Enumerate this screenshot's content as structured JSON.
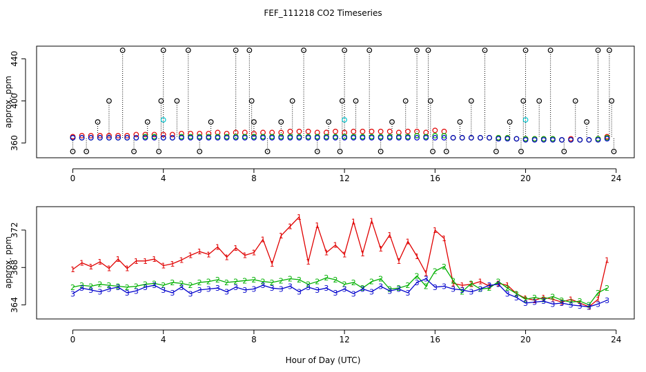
{
  "title": "FEF_111218  CO2 Timeseries",
  "x_axis_label": "Hour of Day (UTC)",
  "colors": {
    "series_1": "#e00000",
    "series_2": "#00b000",
    "series_3": "#0000cc",
    "series_black": "#000000",
    "series_cyan": "#00c8d2"
  },
  "chart_data": [
    {
      "type": "scatter",
      "title": "FEF_111218  CO2 Timeseries",
      "xlabel": "",
      "ylabel": "approx. ppm",
      "xlim": [
        -1.6,
        24.8
      ],
      "ylim": [
        346,
        452
      ],
      "xticks": [
        0,
        4,
        8,
        12,
        16,
        20,
        24
      ],
      "yticks": [
        360,
        400,
        440
      ],
      "marker": "o",
      "note": "black circles connected to near-baseline values by dotted vertical lines; many clipped at plot top",
      "series": [
        {
          "name": "red",
          "color": "#e00000",
          "x": [
            0.0,
            0.4,
            0.8,
            1.2,
            1.6,
            2.0,
            2.4,
            2.8,
            3.2,
            3.6,
            4.0,
            4.4,
            4.8,
            5.2,
            5.6,
            6.0,
            6.4,
            6.8,
            7.2,
            7.6,
            8.0,
            8.4,
            8.8,
            9.2,
            9.6,
            10.0,
            10.4,
            10.8,
            11.2,
            11.6,
            12.0,
            12.4,
            12.8,
            13.2,
            13.6,
            14.0,
            14.4,
            14.8,
            15.2,
            15.6,
            16.0,
            16.4,
            16.8,
            17.2,
            17.6,
            18.0,
            18.4,
            18.8,
            19.2,
            19.6,
            20.0,
            20.4,
            20.8,
            21.2,
            21.6,
            22.0,
            22.4,
            22.8,
            23.2,
            23.6
          ],
          "y": [
            366,
            367,
            367,
            367,
            367,
            367,
            367,
            368,
            368,
            368,
            368,
            368,
            369,
            369,
            369,
            369,
            370,
            369,
            370,
            370,
            369,
            370,
            370,
            370,
            371,
            371,
            371,
            370,
            370,
            371,
            370,
            371,
            371,
            371,
            371,
            371,
            370,
            371,
            371,
            370,
            372,
            371,
            365,
            365,
            365,
            365,
            365,
            365,
            365,
            364,
            364,
            364,
            364,
            364,
            363,
            364,
            363,
            363,
            364,
            366
          ]
        },
        {
          "name": "green",
          "color": "#00b000",
          "x": [
            0.0,
            0.4,
            0.8,
            1.2,
            1.6,
            2.0,
            2.4,
            2.8,
            3.2,
            3.6,
            4.0,
            4.4,
            4.8,
            5.2,
            5.6,
            6.0,
            6.4,
            6.8,
            7.2,
            7.6,
            8.0,
            8.4,
            8.8,
            9.2,
            9.6,
            10.0,
            10.4,
            10.8,
            11.2,
            11.6,
            12.0,
            12.4,
            12.8,
            13.2,
            13.6,
            14.0,
            14.4,
            14.8,
            15.2,
            15.6,
            16.0,
            16.4,
            16.8,
            17.2,
            17.6,
            18.0,
            18.4,
            18.8,
            19.2,
            19.6,
            20.0,
            20.4,
            20.8,
            21.2,
            21.6,
            22.0,
            22.4,
            22.8,
            23.2,
            23.6
          ],
          "y": [
            365,
            365,
            365,
            365,
            365,
            365,
            365,
            365,
            366,
            366,
            365,
            365,
            366,
            366,
            366,
            366,
            366,
            366,
            366,
            366,
            366,
            366,
            366,
            366,
            366,
            366,
            366,
            366,
            366,
            366,
            366,
            366,
            366,
            366,
            366,
            366,
            366,
            366,
            367,
            366,
            367,
            367,
            365,
            365,
            365,
            365,
            365,
            365,
            365,
            364,
            364,
            364,
            364,
            364,
            363,
            363,
            363,
            363,
            364,
            365
          ]
        },
        {
          "name": "blue",
          "color": "#0000cc",
          "x": [
            0.0,
            0.4,
            0.8,
            1.2,
            1.6,
            2.0,
            2.4,
            2.8,
            3.2,
            3.6,
            4.0,
            4.4,
            4.8,
            5.2,
            5.6,
            6.0,
            6.4,
            6.8,
            7.2,
            7.6,
            8.0,
            8.4,
            8.8,
            9.2,
            9.6,
            10.0,
            10.4,
            10.8,
            11.2,
            11.6,
            12.0,
            12.4,
            12.8,
            13.2,
            13.6,
            14.0,
            14.4,
            14.8,
            15.2,
            15.6,
            16.0,
            16.4,
            16.8,
            17.2,
            17.6,
            18.0,
            18.4,
            18.8,
            19.2,
            19.6,
            20.0,
            20.4,
            20.8,
            21.2,
            21.6,
            22.0,
            22.4,
            22.8,
            23.2,
            23.6
          ],
          "y": [
            365,
            365,
            365,
            365,
            365,
            365,
            365,
            365,
            365,
            365,
            365,
            365,
            365,
            365,
            365,
            365,
            365,
            365,
            365,
            365,
            365,
            365,
            365,
            365,
            365,
            365,
            365,
            365,
            365,
            365,
            365,
            365,
            365,
            365,
            365,
            365,
            365,
            365,
            365,
            365,
            365,
            365,
            365,
            365,
            365,
            365,
            365,
            364,
            364,
            364,
            363,
            363,
            363,
            363,
            363,
            363,
            363,
            363,
            363,
            364
          ]
        },
        {
          "name": "black",
          "color": "#000000",
          "x": [
            0.0,
            0.6,
            1.1,
            1.6,
            2.2,
            2.7,
            3.3,
            3.8,
            3.9,
            4.0,
            4.6,
            5.1,
            5.6,
            6.1,
            7.2,
            7.8,
            7.9,
            8.0,
            8.6,
            9.2,
            9.7,
            10.2,
            10.8,
            11.3,
            11.8,
            11.9,
            12.0,
            12.5,
            13.1,
            13.6,
            14.1,
            14.7,
            15.2,
            15.7,
            15.8,
            15.9,
            16.5,
            17.1,
            17.6,
            18.2,
            18.7,
            19.3,
            19.8,
            19.9,
            20.0,
            20.6,
            21.1,
            21.7,
            22.2,
            22.7,
            23.2,
            23.7,
            23.8,
            23.9
          ],
          "y": [
            352,
            352,
            380,
            400,
            450,
            352,
            380,
            352,
            400,
            450,
            400,
            450,
            352,
            380,
            450,
            450,
            400,
            380,
            352,
            380,
            400,
            450,
            352,
            380,
            352,
            400,
            450,
            400,
            450,
            352,
            380,
            400,
            450,
            450,
            400,
            352,
            352,
            380,
            400,
            450,
            352,
            380,
            352,
            400,
            450,
            400,
            450,
            352,
            400,
            380,
            450,
            450,
            400,
            352
          ]
        },
        {
          "name": "cyan",
          "color": "#00c8d2",
          "x": [
            4.0,
            12.0,
            20.0
          ],
          "y": [
            382,
            382,
            382
          ]
        }
      ]
    },
    {
      "type": "line",
      "title": "",
      "xlabel": "Hour of Day (UTC)",
      "ylabel": "approx. ppm",
      "xlim": [
        -1.6,
        24.8
      ],
      "ylim": [
        362.5,
        374.5
      ],
      "xticks": [
        0,
        4,
        8,
        12,
        16,
        20,
        24
      ],
      "yticks": [
        364,
        368,
        372
      ],
      "note": "lines with numeric point symbols 1, 2, 3",
      "series": [
        {
          "name": "1",
          "symbol": "1",
          "color": "#e00000",
          "x": [
            0.0,
            0.4,
            0.8,
            1.2,
            1.6,
            2.0,
            2.4,
            2.8,
            3.2,
            3.6,
            4.0,
            4.4,
            4.8,
            5.2,
            5.6,
            6.0,
            6.4,
            6.8,
            7.2,
            7.6,
            8.0,
            8.4,
            8.8,
            9.2,
            9.6,
            10.0,
            10.4,
            10.8,
            11.2,
            11.6,
            12.0,
            12.4,
            12.8,
            13.2,
            13.6,
            14.0,
            14.4,
            14.8,
            15.2,
            15.6,
            16.0,
            16.4,
            16.8,
            17.2,
            17.6,
            18.0,
            18.4,
            18.8,
            19.2,
            19.6,
            20.0,
            20.4,
            20.8,
            21.2,
            21.6,
            22.0,
            22.4,
            22.8,
            23.2,
            23.6
          ],
          "y": [
            367.8,
            368.5,
            368.1,
            368.6,
            367.9,
            368.9,
            367.9,
            368.7,
            368.7,
            368.9,
            368.2,
            368.4,
            368.8,
            369.3,
            369.7,
            369.4,
            370.2,
            369.1,
            370.1,
            369.3,
            369.6,
            371.0,
            368.4,
            371.4,
            372.4,
            373.4,
            368.6,
            372.5,
            369.6,
            370.4,
            369.4,
            372.9,
            369.5,
            373.0,
            370.0,
            371.5,
            368.7,
            370.8,
            369.2,
            367.4,
            372.0,
            371.1,
            366.3,
            366.1,
            366.2,
            366.5,
            366.0,
            366.3,
            366.1,
            365.2,
            364.7,
            364.5,
            364.8,
            364.6,
            364.3,
            364.6,
            364.2,
            363.8,
            364.6,
            368.8
          ]
        },
        {
          "name": "2",
          "symbol": "2",
          "color": "#00b000",
          "x": [
            0.0,
            0.4,
            0.8,
            1.2,
            1.6,
            2.0,
            2.4,
            2.8,
            3.2,
            3.6,
            4.0,
            4.4,
            4.8,
            5.2,
            5.6,
            6.0,
            6.4,
            6.8,
            7.2,
            7.6,
            8.0,
            8.4,
            8.8,
            9.2,
            9.6,
            10.0,
            10.4,
            10.8,
            11.2,
            11.6,
            12.0,
            12.4,
            12.8,
            13.2,
            13.6,
            14.0,
            14.4,
            14.8,
            15.2,
            15.6,
            16.0,
            16.4,
            16.8,
            17.2,
            17.6,
            18.0,
            18.4,
            18.8,
            19.2,
            19.6,
            20.0,
            20.4,
            20.8,
            21.2,
            21.6,
            22.0,
            22.4,
            22.8,
            23.2,
            23.6
          ],
          "y": [
            365.9,
            366.1,
            366.0,
            366.2,
            366.1,
            366.0,
            365.9,
            366.0,
            366.2,
            366.3,
            366.1,
            366.4,
            366.3,
            366.1,
            366.4,
            366.5,
            366.7,
            366.4,
            366.5,
            366.6,
            366.7,
            366.5,
            366.4,
            366.6,
            366.8,
            366.7,
            366.2,
            366.5,
            366.9,
            366.7,
            366.2,
            366.4,
            365.8,
            366.5,
            366.8,
            365.7,
            365.8,
            366.1,
            367.1,
            366.0,
            367.6,
            368.1,
            366.6,
            365.4,
            366.3,
            365.7,
            365.8,
            366.5,
            365.8,
            365.2,
            364.6,
            364.8,
            364.6,
            364.9,
            364.5,
            364.3,
            364.4,
            364.0,
            365.3,
            365.8
          ]
        },
        {
          "name": "3",
          "symbol": "3",
          "color": "#0000cc",
          "x": [
            0.0,
            0.4,
            0.8,
            1.2,
            1.6,
            2.0,
            2.4,
            2.8,
            3.2,
            3.6,
            4.0,
            4.4,
            4.8,
            5.2,
            5.6,
            6.0,
            6.4,
            6.8,
            7.2,
            7.6,
            8.0,
            8.4,
            8.8,
            9.2,
            9.6,
            10.0,
            10.4,
            10.8,
            11.2,
            11.6,
            12.0,
            12.4,
            12.8,
            13.2,
            13.6,
            14.0,
            14.4,
            14.8,
            15.2,
            15.6,
            16.0,
            16.4,
            16.8,
            17.2,
            17.6,
            18.0,
            18.4,
            18.8,
            19.2,
            19.6,
            20.0,
            20.4,
            20.8,
            21.2,
            21.6,
            22.0,
            22.4,
            22.8,
            23.2,
            23.6
          ],
          "y": [
            365.2,
            365.8,
            365.6,
            365.4,
            365.7,
            365.9,
            365.3,
            365.5,
            365.9,
            366.1,
            365.6,
            365.3,
            365.9,
            365.2,
            365.6,
            365.7,
            365.8,
            365.4,
            365.9,
            365.6,
            365.7,
            366.1,
            365.8,
            365.7,
            366.0,
            365.4,
            365.9,
            365.6,
            365.8,
            365.3,
            365.7,
            365.2,
            365.7,
            365.4,
            366.0,
            365.5,
            365.7,
            365.3,
            366.4,
            366.8,
            365.9,
            366.0,
            365.7,
            365.6,
            365.4,
            365.7,
            366.1,
            366.2,
            365.2,
            364.8,
            364.2,
            364.3,
            364.4,
            364.1,
            364.2,
            364.0,
            363.9,
            363.8,
            364.1,
            364.5
          ]
        }
      ]
    }
  ]
}
